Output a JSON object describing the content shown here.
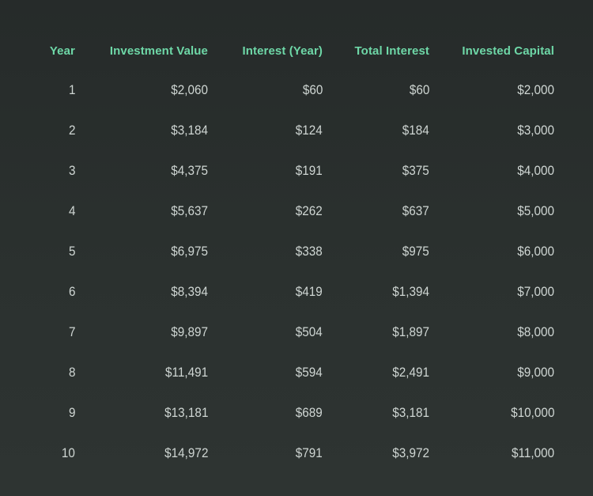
{
  "table": {
    "headers": [
      "Year",
      "Investment Value",
      "Interest (Year)",
      "Total Interest",
      "Invested Capital"
    ],
    "rows": [
      [
        "1",
        "$2,060",
        "$60",
        "$60",
        "$2,000"
      ],
      [
        "2",
        "$3,184",
        "$124",
        "$184",
        "$3,000"
      ],
      [
        "3",
        "$4,375",
        "$191",
        "$375",
        "$4,000"
      ],
      [
        "4",
        "$5,637",
        "$262",
        "$637",
        "$5,000"
      ],
      [
        "5",
        "$6,975",
        "$338",
        "$975",
        "$6,000"
      ],
      [
        "6",
        "$8,394",
        "$419",
        "$1,394",
        "$7,000"
      ],
      [
        "7",
        "$9,897",
        "$504",
        "$1,897",
        "$8,000"
      ],
      [
        "8",
        "$11,491",
        "$594",
        "$2,491",
        "$9,000"
      ],
      [
        "9",
        "$13,181",
        "$689",
        "$3,181",
        "$10,000"
      ],
      [
        "10",
        "$14,972",
        "$791",
        "$3,972",
        "$11,000"
      ]
    ]
  },
  "colors": {
    "background": "#2a2f2e",
    "header_text": "#6ed7a7",
    "body_text": "#cfd6d3"
  }
}
